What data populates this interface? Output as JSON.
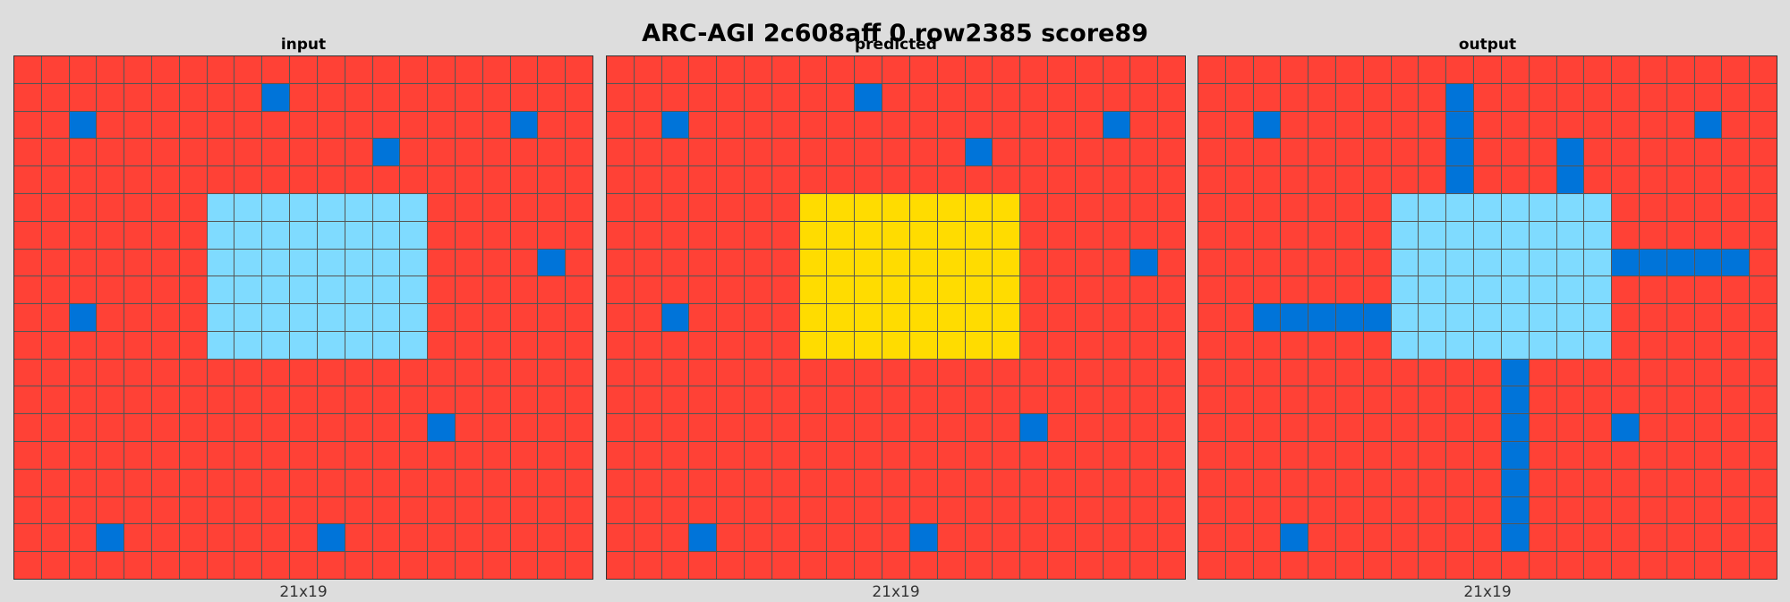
{
  "title": "ARC-AGI 2c608aff 0 row2385 score89",
  "colors": {
    "R": "#ff4136",
    "B": "#0074d9",
    "C": "#7fdbff",
    "Y": "#ffdc00"
  },
  "panels": [
    {
      "key": "input",
      "title": "input",
      "dims": "21x19",
      "rows": [
        "RRRRRRRRRRRRRRRRRRRRR",
        "RRRRRRRRRBRRRRRRRRRRR",
        "RRBRRRRRRRRRRRRRRRBRR",
        "RRRRRRRRRRRRRBRRRRRRR",
        "RRRRRRRRRRRRRRRRRRRRR",
        "RRRRRRRCCCCCCCCRRRRRR",
        "RRRRRRRCCCCCCCCRRRRRR",
        "RRRRRRRCCCCCCCCRRRRBR",
        "RRRRRRRCCCCCCCCRRRRRR",
        "RRBRRRRCCCCCCCCRRRRRR",
        "RRRRRRRCCCCCCCCRRRRRR",
        "RRRRRRRRRRRRRRRRRRRRR",
        "RRRRRRRRRRRRRRRRRRRRR",
        "RRRRRRRRRRRRRRRBRRRRR",
        "RRRRRRRRRRRRRRRRRRRRR",
        "RRRRRRRRRRRRRRRRRRRRR",
        "RRRRRRRRRRRRRRRRRRRRR",
        "RRRBRRRRRRRBRRRRRRRRR",
        "RRRRRRRRRRRRRRRRRRRRR"
      ]
    },
    {
      "key": "predicted",
      "title": "predicted",
      "dims": "21x19",
      "rows": [
        "RRRRRRRRRRRRRRRRRRRRR",
        "RRRRRRRRRBRRRRRRRRRRR",
        "RRBRRRRRRRRRRRRRRRBRR",
        "RRRRRRRRRRRRRBRRRRRRR",
        "RRRRRRRRRRRRRRRRRRRRR",
        "RRRRRRRYYYYYYYYRRRRRR",
        "RRRRRRRYYYYYYYYRRRRRR",
        "RRRRRRRYYYYYYYYRRRRBR",
        "RRRRRRRYYYYYYYYRRRRRR",
        "RRBRRRRYYYYYYYYRRRRRR",
        "RRRRRRRYYYYYYYYRRRRRR",
        "RRRRRRRRRRRRRRRRRRRRR",
        "RRRRRRRRRRRRRRRRRRRRR",
        "RRRRRRRRRRRRRRRBRRRRR",
        "RRRRRRRRRRRRRRRRRRRRR",
        "RRRRRRRRRRRRRRRRRRRRR",
        "RRRRRRRRRRRRRRRRRRRRR",
        "RRRBRRRRRRRBRRRRRRRRR",
        "RRRRRRRRRRRRRRRRRRRRR"
      ]
    },
    {
      "key": "output",
      "title": "output",
      "dims": "21x19",
      "rows": [
        "RRRRRRRRRRRRRRRRRRRRR",
        "RRRRRRRRRBRRRRRRRRRRR",
        "RRBRRRRRRBRRRRRRRRBRR",
        "RRRRRRRRRBRRRBRRRRRRR",
        "RRRRRRRRRBRRRBRRRRRRR",
        "RRRRRRRCCCCCCCCRRRRRR",
        "RRRRRRRCCCCCCCCRRRRRR",
        "RRRRRRRCCCCCCCCBBBBBR",
        "RRRRRRRCCCCCCCCRRRRRR",
        "RRBBBBBCCCCCCCCRRRRRR",
        "RRRRRRRCCCCCCCCRRRRRR",
        "RRRRRRRRRRRBRRRRRRRRR",
        "RRRRRRRRRRRBRRRRRRRRR",
        "RRRRRRRRRRRBRRRBRRRRR",
        "RRRRRRRRRRRBRRRRRRRRR",
        "RRRRRRRRRRRBRRRRRRRRR",
        "RRRRRRRRRRRBRRRRRRRRR",
        "RRRBRRRRRRRBRRRRRRRRR",
        "RRRRRRRRRRRRRRRRRRRRR"
      ]
    }
  ]
}
